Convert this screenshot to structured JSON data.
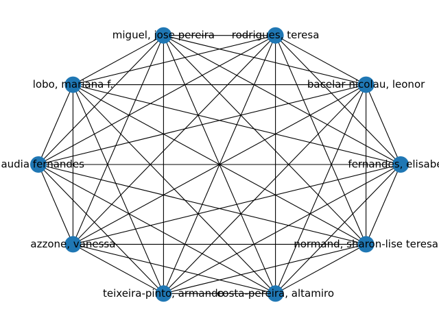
{
  "graph": {
    "layout": "circular",
    "complete": true,
    "node_color": "#1f77b4",
    "edge_color": "#000000",
    "nodes": [
      {
        "id": "n0",
        "label": "fernandes, elisabete"
      },
      {
        "id": "n1",
        "label": "bacelar nicolau, leonor"
      },
      {
        "id": "n2",
        "label": "rodrigues, teresa"
      },
      {
        "id": "n3",
        "label": "miguel, jose pereira"
      },
      {
        "id": "n4",
        "label": "lobo, mariana f."
      },
      {
        "id": "n5",
        "label": "claudia fernandes"
      },
      {
        "id": "n6",
        "label": "azzone, vanessa"
      },
      {
        "id": "n7",
        "label": "teixeira-pinto, armando"
      },
      {
        "id": "n8",
        "label": "costa-pereira, altamiro"
      },
      {
        "id": "n9",
        "label": "normand, sharon-lise teresa"
      }
    ]
  }
}
